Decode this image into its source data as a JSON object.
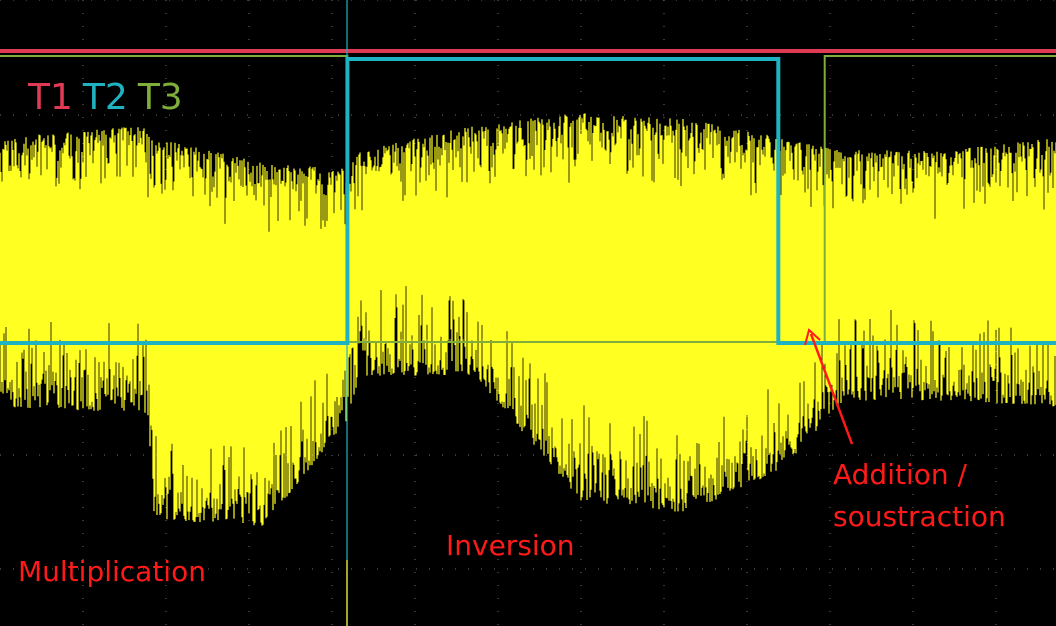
{
  "chart_data": {
    "type": "line",
    "title": "",
    "xlabel": "",
    "ylabel": "",
    "grid": true,
    "legend_placement": "top-left",
    "colors": {
      "background": "#000000",
      "grid": "#6e6e6e",
      "T1": "#e03a54",
      "T2": "#1fb3c2",
      "T3": "#7fae3a",
      "signal": "#ffff22",
      "annotation": "#ff1a1a"
    },
    "legend": [
      "T1",
      "T2",
      "T3"
    ],
    "series": [
      {
        "name": "T1",
        "kind": "digital",
        "note": "constant high",
        "transitions": []
      },
      {
        "name": "T2",
        "kind": "digital",
        "low_high": [
          {
            "from": 0.0,
            "to": 0.329,
            "level": "low"
          },
          {
            "from": 0.329,
            "to": 0.737,
            "level": "high"
          },
          {
            "from": 0.737,
            "to": 1.0,
            "level": "low"
          }
        ]
      },
      {
        "name": "T3",
        "kind": "digital",
        "low_high": [
          {
            "from": 0.0,
            "to": 0.329,
            "level": "high"
          },
          {
            "from": 0.329,
            "to": 0.781,
            "level": "low"
          },
          {
            "from": 0.781,
            "to": 1.0,
            "level": "high"
          }
        ]
      },
      {
        "name": "",
        "kind": "analog-noise",
        "envelope": [
          {
            "t": 0.0,
            "max": 0.78,
            "min": 0.35
          },
          {
            "t": 0.14,
            "max": 0.8,
            "min": 0.34
          },
          {
            "t": 0.145,
            "max": 0.78,
            "min": 0.17
          },
          {
            "t": 0.25,
            "max": 0.74,
            "min": 0.16
          },
          {
            "t": 0.33,
            "max": 0.73,
            "min": 0.33
          },
          {
            "t": 0.34,
            "max": 0.76,
            "min": 0.4
          },
          {
            "t": 0.45,
            "max": 0.8,
            "min": 0.4
          },
          {
            "t": 0.55,
            "max": 0.82,
            "min": 0.2
          },
          {
            "t": 0.65,
            "max": 0.81,
            "min": 0.18
          },
          {
            "t": 0.74,
            "max": 0.78,
            "min": 0.25
          },
          {
            "t": 0.8,
            "max": 0.76,
            "min": 0.36
          },
          {
            "t": 0.9,
            "max": 0.76,
            "min": 0.36
          },
          {
            "t": 1.0,
            "max": 0.78,
            "min": 0.35
          }
        ]
      }
    ],
    "annotations": [
      {
        "text": "Multiplication"
      },
      {
        "text": "Inversion"
      },
      {
        "text": "Addition /\nsoustraction"
      }
    ]
  }
}
